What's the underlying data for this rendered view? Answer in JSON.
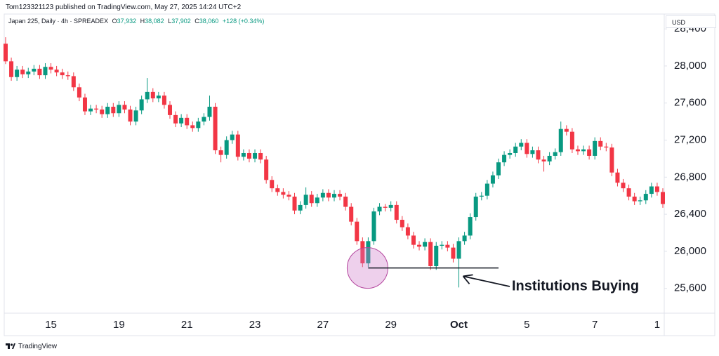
{
  "header": {
    "publisher": "Tom123321123 published on TradingView.com, May 27, 2025 14:24 UTC+2"
  },
  "legend": {
    "symbol": "Japan 225, Daily · 4h · SPREADEX",
    "open_label": "O",
    "open": "37,932",
    "high_label": "H",
    "high": "38,082",
    "low_label": "L",
    "low": "37,902",
    "close_label": "C",
    "close": "38,060",
    "change": "+128 (+0.34%)"
  },
  "currency": "USD",
  "chart_data": {
    "type": "candlestick",
    "categories": [
      null,
      null,
      null,
      null,
      null,
      null,
      null,
      null,
      "15",
      null,
      null,
      null,
      null,
      null,
      null,
      null,
      null,
      null,
      null,
      null,
      "19",
      null,
      null,
      null,
      null,
      null,
      null,
      null,
      null,
      null,
      null,
      null,
      "21",
      null,
      null,
      null,
      null,
      null,
      null,
      null,
      null,
      null,
      null,
      null,
      "23",
      null,
      null,
      null,
      null,
      null,
      null,
      null,
      null,
      null,
      null,
      null,
      "27",
      null,
      null,
      null,
      null,
      null,
      null,
      null,
      null,
      null,
      null,
      null,
      "29",
      null,
      null,
      null,
      null,
      null,
      null,
      null,
      null,
      null,
      null,
      null,
      "Oct",
      null,
      null,
      null,
      null,
      null,
      null,
      null,
      null,
      null,
      null,
      null,
      "5",
      null,
      null,
      null,
      null,
      null,
      null,
      null,
      null,
      null,
      null,
      null,
      "7",
      null,
      null,
      null,
      null,
      null,
      null,
      null,
      null,
      null,
      null,
      "1",
      null
    ],
    "open": [
      28240,
      28050,
      27880,
      27960,
      27910,
      27940,
      27970,
      27900,
      27990,
      27960,
      27930,
      27900,
      27890,
      27770,
      27660,
      27510,
      27540,
      27530,
      27480,
      27560,
      27490,
      27580,
      27530,
      27400,
      27520,
      27640,
      27720,
      27650,
      27680,
      27580,
      27470,
      27380,
      27440,
      27360,
      27330,
      27400,
      27450,
      27560,
      27090,
      27040,
      27200,
      27260,
      27020,
      27060,
      27000,
      27060,
      26990,
      26770,
      26680,
      26640,
      26610,
      26590,
      26440,
      26500,
      26610,
      26520,
      26580,
      26630,
      26580,
      26620,
      26590,
      26480,
      26320,
      26110,
      25870,
      26110,
      26430,
      26480,
      26470,
      26500,
      26340,
      26260,
      26170,
      26070,
      26050,
      26100,
      25840,
      26060,
      26070,
      26040,
      25920,
      26110,
      26170,
      26370,
      26590,
      26600,
      26730,
      26820,
      26960,
      27040,
      27060,
      27130,
      27170,
      27050,
      27090,
      26990,
      26970,
      27030,
      27070,
      27320,
      27290,
      27100,
      27080,
      27100,
      27030,
      27190,
      27130,
      27120,
      26850,
      26740,
      26680,
      26590,
      26540,
      26550,
      26620,
      26700,
      26640
    ],
    "high": [
      28310,
      28090,
      28000,
      28000,
      27980,
      28010,
      28010,
      28030,
      28030,
      28000,
      27970,
      27940,
      27930,
      27810,
      27700,
      27580,
      27580,
      27570,
      27600,
      27600,
      27620,
      27620,
      27570,
      27560,
      27680,
      27870,
      27760,
      27720,
      27720,
      27620,
      27510,
      27480,
      27480,
      27400,
      27440,
      27490,
      27680,
      27600,
      27130,
      27240,
      27300,
      27300,
      27100,
      27100,
      27100,
      27100,
      27030,
      26810,
      26720,
      26680,
      26650,
      26630,
      26540,
      26690,
      26650,
      26620,
      26670,
      26670,
      26660,
      26660,
      26630,
      26520,
      26360,
      26150,
      26150,
      26470,
      26520,
      26510,
      26540,
      26540,
      26380,
      26300,
      26210,
      26110,
      26140,
      26140,
      26100,
      26110,
      26110,
      26080,
      26150,
      26210,
      26410,
      26630,
      26640,
      26770,
      26860,
      27000,
      27080,
      27100,
      27170,
      27210,
      27210,
      27130,
      27130,
      27030,
      27070,
      27110,
      27400,
      27360,
      27330,
      27140,
      27140,
      27140,
      27230,
      27230,
      27170,
      27160,
      26890,
      26780,
      26720,
      26630,
      26590,
      26660,
      26740,
      26740,
      26680
    ],
    "low": [
      28020,
      27840,
      27840,
      27870,
      27870,
      27900,
      27860,
      27860,
      27920,
      27890,
      27860,
      27850,
      27730,
      27620,
      27470,
      27470,
      27490,
      27440,
      27440,
      27450,
      27450,
      27490,
      27360,
      27360,
      27480,
      27600,
      27610,
      27610,
      27540,
      27430,
      27340,
      27340,
      27320,
      27290,
      27290,
      27360,
      27410,
      27050,
      26960,
      27000,
      27160,
      26980,
      26980,
      26960,
      26960,
      26950,
      26730,
      26640,
      26600,
      26570,
      26550,
      26400,
      26400,
      26460,
      26480,
      26480,
      26540,
      26540,
      26540,
      26550,
      26440,
      26280,
      26070,
      25830,
      25830,
      26070,
      26390,
      26430,
      26430,
      26300,
      26220,
      26130,
      26030,
      26010,
      26010,
      25800,
      25800,
      26020,
      26000,
      25880,
      25610,
      26070,
      26130,
      26330,
      26550,
      26560,
      26690,
      26780,
      26920,
      27000,
      27020,
      27090,
      27010,
      27010,
      26950,
      26860,
      26930,
      26990,
      27030,
      27250,
      27060,
      27040,
      27040,
      26990,
      26990,
      27090,
      27080,
      26810,
      26700,
      26640,
      26550,
      26500,
      26500,
      26510,
      26580,
      26600,
      26470
    ],
    "close": [
      28050,
      27880,
      27960,
      27910,
      27940,
      27970,
      27900,
      27990,
      27960,
      27930,
      27900,
      27890,
      27770,
      27660,
      27510,
      27540,
      27530,
      27480,
      27560,
      27490,
      27580,
      27530,
      27400,
      27520,
      27640,
      27720,
      27650,
      27680,
      27580,
      27470,
      27380,
      27440,
      27360,
      27330,
      27400,
      27450,
      27560,
      27090,
      27040,
      27200,
      27260,
      27020,
      27060,
      27000,
      27060,
      26990,
      26770,
      26680,
      26640,
      26610,
      26590,
      26440,
      26500,
      26610,
      26520,
      26580,
      26630,
      26580,
      26620,
      26590,
      26480,
      26320,
      26110,
      25870,
      26110,
      26430,
      26480,
      26470,
      26500,
      26340,
      26260,
      26170,
      26070,
      26050,
      26100,
      25840,
      26060,
      26070,
      26040,
      25920,
      26110,
      26170,
      26370,
      26590,
      26600,
      26730,
      26820,
      26960,
      27040,
      27060,
      27130,
      27170,
      27050,
      27090,
      26990,
      26970,
      27030,
      27070,
      27320,
      27290,
      27100,
      27080,
      27100,
      27030,
      27190,
      27130,
      27120,
      26850,
      26740,
      26680,
      26590,
      26540,
      26550,
      26620,
      26700,
      26640,
      26510
    ],
    "up_color": "#089981",
    "down_color": "#f23645",
    "ylim": [
      25340,
      28545
    ],
    "yticks": [
      {
        "value": 25600,
        "label": "25,600"
      },
      {
        "value": 26000,
        "label": "26,000"
      },
      {
        "value": 26400,
        "label": "26,400"
      },
      {
        "value": 26800,
        "label": "26,800"
      },
      {
        "value": 27200,
        "label": "27,200"
      },
      {
        "value": 27600,
        "label": "27,600"
      },
      {
        "value": 28000,
        "label": "28,000"
      },
      {
        "value": 28400,
        "label": "28,400"
      }
    ],
    "annotation": {
      "text": "Institutions Buying",
      "level": 25820
    }
  },
  "footer": {
    "brand": "TradingView"
  }
}
